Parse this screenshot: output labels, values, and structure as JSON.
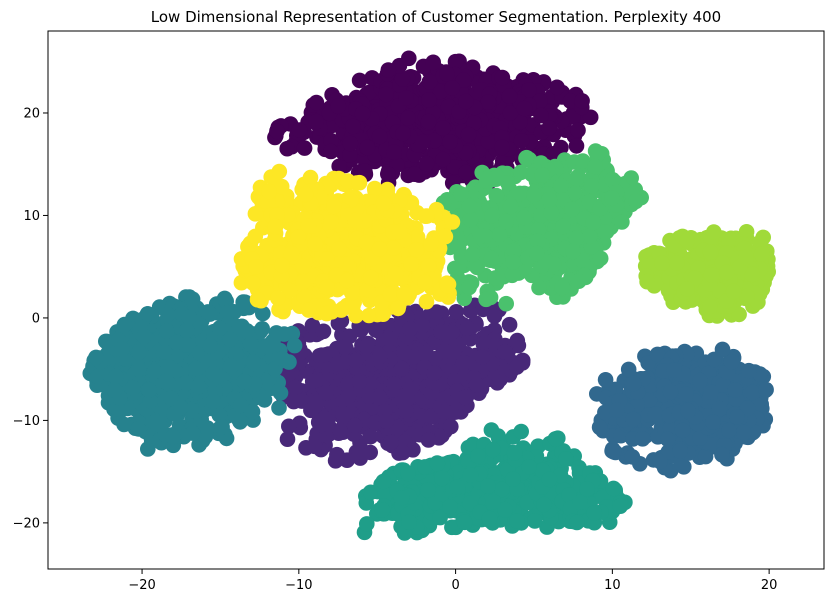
{
  "chart_data": {
    "type": "scatter",
    "title": "Low Dimensional Representation of Customer Segmentation. Perplexity 400",
    "xlabel": "",
    "ylabel": "",
    "xlim": [
      -26,
      23.5
    ],
    "ylim": [
      -24.5,
      28
    ],
    "xticks": [
      -20,
      -10,
      0,
      10,
      20
    ],
    "yticks": [
      -20,
      -10,
      0,
      10,
      20
    ],
    "grid": false,
    "legend": "none",
    "marker_radius_data": 0.5,
    "clusters": [
      {
        "id": "cluster-purple-dark",
        "color": "#440154",
        "center": [
          -1.0,
          19.0
        ],
        "spread": [
          5.0,
          3.0
        ],
        "count": 650,
        "polygon": [
          [
            -13,
            17
          ],
          [
            -8,
            22
          ],
          [
            -3,
            25.5
          ],
          [
            2,
            25
          ],
          [
            8,
            22
          ],
          [
            10,
            18
          ],
          [
            7,
            16
          ],
          [
            2,
            13
          ],
          [
            -2,
            12
          ],
          [
            -6,
            14
          ],
          [
            -10,
            16
          ]
        ]
      },
      {
        "id": "cluster-indigo",
        "color": "#482878",
        "center": [
          -3.0,
          -6.0
        ],
        "spread": [
          5.5,
          4.0
        ],
        "count": 650,
        "polygon": [
          [
            -11,
            -1
          ],
          [
            -6,
            0
          ],
          [
            -1,
            1.5
          ],
          [
            3,
            1.5
          ],
          [
            4,
            -1
          ],
          [
            5,
            -4
          ],
          [
            1,
            -8
          ],
          [
            -1,
            -12
          ],
          [
            -4,
            -14
          ],
          [
            -8,
            -14
          ],
          [
            -11,
            -12
          ]
        ]
      },
      {
        "id": "cluster-blue",
        "color": "#31688e",
        "center": [
          15.5,
          -8.5
        ],
        "spread": [
          3.5,
          3.0
        ],
        "count": 550,
        "polygon": [
          [
            9,
            -6
          ],
          [
            12,
            -3.5
          ],
          [
            17,
            -3
          ],
          [
            20,
            -6
          ],
          [
            20,
            -10
          ],
          [
            17,
            -14.5
          ],
          [
            13,
            -15
          ],
          [
            10,
            -14
          ],
          [
            9,
            -10
          ]
        ]
      },
      {
        "id": "cluster-teal",
        "color": "#26828e",
        "center": [
          -17.5,
          -5.0
        ],
        "spread": [
          3.8,
          3.8
        ],
        "count": 650,
        "polygon": [
          [
            -24,
            -5
          ],
          [
            -21,
            0
          ],
          [
            -17,
            2.5
          ],
          [
            -13,
            1.5
          ],
          [
            -10,
            -1
          ],
          [
            -10,
            -5
          ],
          [
            -11,
            -9
          ],
          [
            -13,
            -11
          ],
          [
            -17,
            -13
          ],
          [
            -20,
            -13
          ],
          [
            -22,
            -9
          ]
        ]
      },
      {
        "id": "cluster-green-teal",
        "color": "#1f9e89",
        "center": [
          2.5,
          -17.0
        ],
        "spread": [
          5.0,
          2.5
        ],
        "count": 600,
        "polygon": [
          [
            -7,
            -19
          ],
          [
            -4,
            -15
          ],
          [
            0,
            -13.5
          ],
          [
            3,
            -9
          ],
          [
            6,
            -11
          ],
          [
            9,
            -15
          ],
          [
            11,
            -18
          ],
          [
            10,
            -20
          ],
          [
            6,
            -21
          ],
          [
            2,
            -20
          ],
          [
            -2,
            -21
          ],
          [
            -6,
            -21
          ]
        ]
      },
      {
        "id": "cluster-green",
        "color": "#4ac16d",
        "center": [
          6.0,
          9.0
        ],
        "spread": [
          3.8,
          3.5
        ],
        "count": 600,
        "polygon": [
          [
            -1.5,
            11
          ],
          [
            1,
            14
          ],
          [
            5,
            16
          ],
          [
            9,
            17
          ],
          [
            11,
            15
          ],
          [
            12,
            12
          ],
          [
            10,
            8
          ],
          [
            9,
            5
          ],
          [
            7,
            2
          ],
          [
            3,
            1
          ],
          [
            0,
            2
          ],
          [
            -1,
            6
          ]
        ]
      },
      {
        "id": "cluster-lime",
        "color": "#a0da39",
        "center": [
          16.5,
          4.5
        ],
        "spread": [
          2.3,
          2.2
        ],
        "count": 380,
        "polygon": [
          [
            12,
            6
          ],
          [
            14,
            8
          ],
          [
            17,
            9
          ],
          [
            20,
            8
          ],
          [
            20,
            4
          ],
          [
            19,
            0
          ],
          [
            17,
            -1
          ],
          [
            14,
            1
          ],
          [
            12,
            3
          ]
        ]
      },
      {
        "id": "cluster-yellow",
        "color": "#fde725",
        "center": [
          -7.0,
          7.0
        ],
        "spread": [
          4.2,
          4.2
        ],
        "count": 650,
        "polygon": [
          [
            -14,
            4
          ],
          [
            -13,
            10
          ],
          [
            -12,
            15
          ],
          [
            -8,
            14
          ],
          [
            -3,
            12
          ],
          [
            0,
            10
          ],
          [
            -1,
            6
          ],
          [
            0,
            2
          ],
          [
            -3,
            0.5
          ],
          [
            -7,
            0
          ],
          [
            -11,
            0.5
          ],
          [
            -13,
            2
          ]
        ]
      }
    ]
  }
}
